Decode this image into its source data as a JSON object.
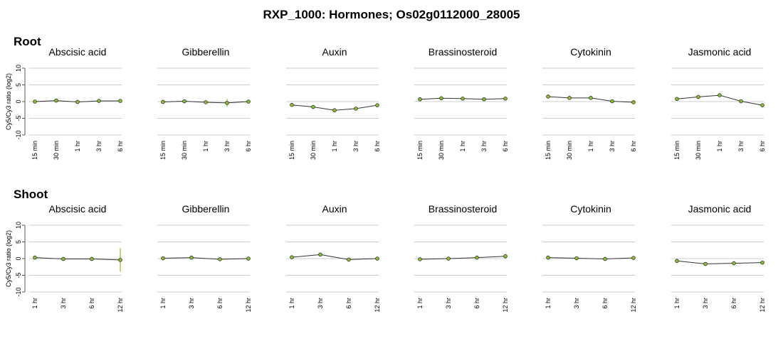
{
  "figure_title": "RXP_1000: Hormones; Os02g0112000_28005",
  "colors": {
    "grid": "#cccccc",
    "line": "#333333",
    "point_fill": "#8bbf2a",
    "point_stroke": "#333333",
    "error_bar": "#8bbf2a"
  },
  "chart_data": [
    {
      "section": "Root",
      "type": "line",
      "ylabel": "Cy5/Cy3 ratio (log2)",
      "ylim": [
        -10,
        10
      ],
      "yticks": [
        "-10",
        "-5",
        "0",
        "5",
        "10"
      ],
      "categories": [
        "15 min",
        "30 min",
        "1 hr",
        "3 hr",
        "6 hr"
      ],
      "panels": [
        {
          "name": "Abscisic acid",
          "values": [
            0.0,
            0.3,
            -0.1,
            0.2,
            0.2
          ],
          "errors": [
            0.3,
            0.3,
            0.3,
            0.6,
            0.3
          ]
        },
        {
          "name": "Gibberellin",
          "values": [
            -0.1,
            0.1,
            -0.2,
            -0.4,
            0.0
          ],
          "errors": [
            0.5,
            0.3,
            0.4,
            1.2,
            0.4
          ]
        },
        {
          "name": "Auxin",
          "values": [
            -1.0,
            -1.6,
            -2.6,
            -2.1,
            -1.1
          ],
          "errors": [
            0.3,
            0.3,
            0.3,
            0.3,
            0.3
          ]
        },
        {
          "name": "Brassinosteroid",
          "values": [
            0.7,
            1.0,
            0.9,
            0.7,
            0.9
          ],
          "errors": [
            0.3,
            0.3,
            0.3,
            0.4,
            0.3
          ]
        },
        {
          "name": "Cytokinin",
          "values": [
            1.5,
            1.1,
            1.1,
            0.1,
            -0.2
          ],
          "errors": [
            0.3,
            0.3,
            0.3,
            0.3,
            0.3
          ]
        },
        {
          "name": "Jasmonic acid",
          "values": [
            0.8,
            1.4,
            1.9,
            0.1,
            -1.1
          ],
          "errors": [
            0.3,
            0.3,
            0.3,
            0.3,
            0.3
          ]
        }
      ]
    },
    {
      "section": "Shoot",
      "type": "line",
      "ylabel": "Cy5/Cy3 ratio (log2)",
      "ylim": [
        -10,
        10
      ],
      "yticks": [
        "-10",
        "-5",
        "0",
        "5",
        "10"
      ],
      "categories": [
        "1 hr",
        "3 hr",
        "6 hr",
        "12 hr"
      ],
      "panels": [
        {
          "name": "Abscisic acid",
          "values": [
            0.3,
            -0.1,
            -0.1,
            -0.4
          ],
          "errors": [
            0.3,
            0.3,
            0.3,
            3.5
          ]
        },
        {
          "name": "Gibberellin",
          "values": [
            0.1,
            0.3,
            -0.2,
            0.0
          ],
          "errors": [
            0.3,
            0.3,
            0.3,
            0.3
          ]
        },
        {
          "name": "Auxin",
          "values": [
            0.4,
            1.2,
            -0.3,
            0.0
          ],
          "errors": [
            0.3,
            0.3,
            0.3,
            0.3
          ]
        },
        {
          "name": "Brassinosteroid",
          "values": [
            -0.2,
            0.0,
            0.3,
            0.7
          ],
          "errors": [
            0.3,
            0.3,
            0.3,
            0.4
          ]
        },
        {
          "name": "Cytokinin",
          "values": [
            0.3,
            0.1,
            -0.1,
            0.2
          ],
          "errors": [
            0.3,
            0.3,
            0.3,
            0.3
          ]
        },
        {
          "name": "Jasmonic acid",
          "values": [
            -0.7,
            -1.6,
            -1.4,
            -1.2
          ],
          "errors": [
            0.6,
            0.3,
            0.3,
            0.3
          ]
        }
      ]
    }
  ]
}
